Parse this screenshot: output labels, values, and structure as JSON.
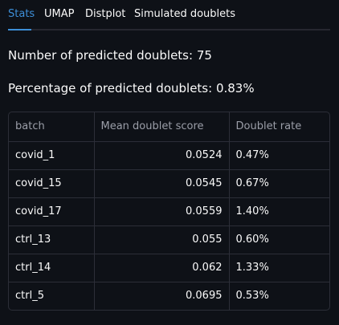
{
  "tabs": [
    {
      "label": "Stats",
      "active": true
    },
    {
      "label": "UMAP",
      "active": false
    },
    {
      "label": "Distplot",
      "active": false
    },
    {
      "label": "Simulated doublets",
      "active": false
    }
  ],
  "stats": {
    "count_text": "Number of predicted doublets: 75",
    "percent_text": "Percentage of predicted doublets: 0.83%"
  },
  "table": {
    "headers": [
      "batch",
      "Mean doublet score",
      "Doublet rate"
    ],
    "rows": [
      {
        "batch": "covid_1",
        "score": "0.0524",
        "rate": "0.47%"
      },
      {
        "batch": "covid_15",
        "score": "0.0545",
        "rate": "0.67%"
      },
      {
        "batch": "covid_17",
        "score": "0.0559",
        "rate": "1.40%"
      },
      {
        "batch": "ctrl_13",
        "score": "0.055",
        "rate": "0.60%"
      },
      {
        "batch": "ctrl_14",
        "score": "0.062",
        "rate": "1.33%"
      },
      {
        "batch": "ctrl_5",
        "score": "0.0695",
        "rate": "0.53%"
      }
    ]
  },
  "colors": {
    "accent": "#3d8fd8",
    "background": "#0e1117",
    "border": "#2c2e38"
  }
}
